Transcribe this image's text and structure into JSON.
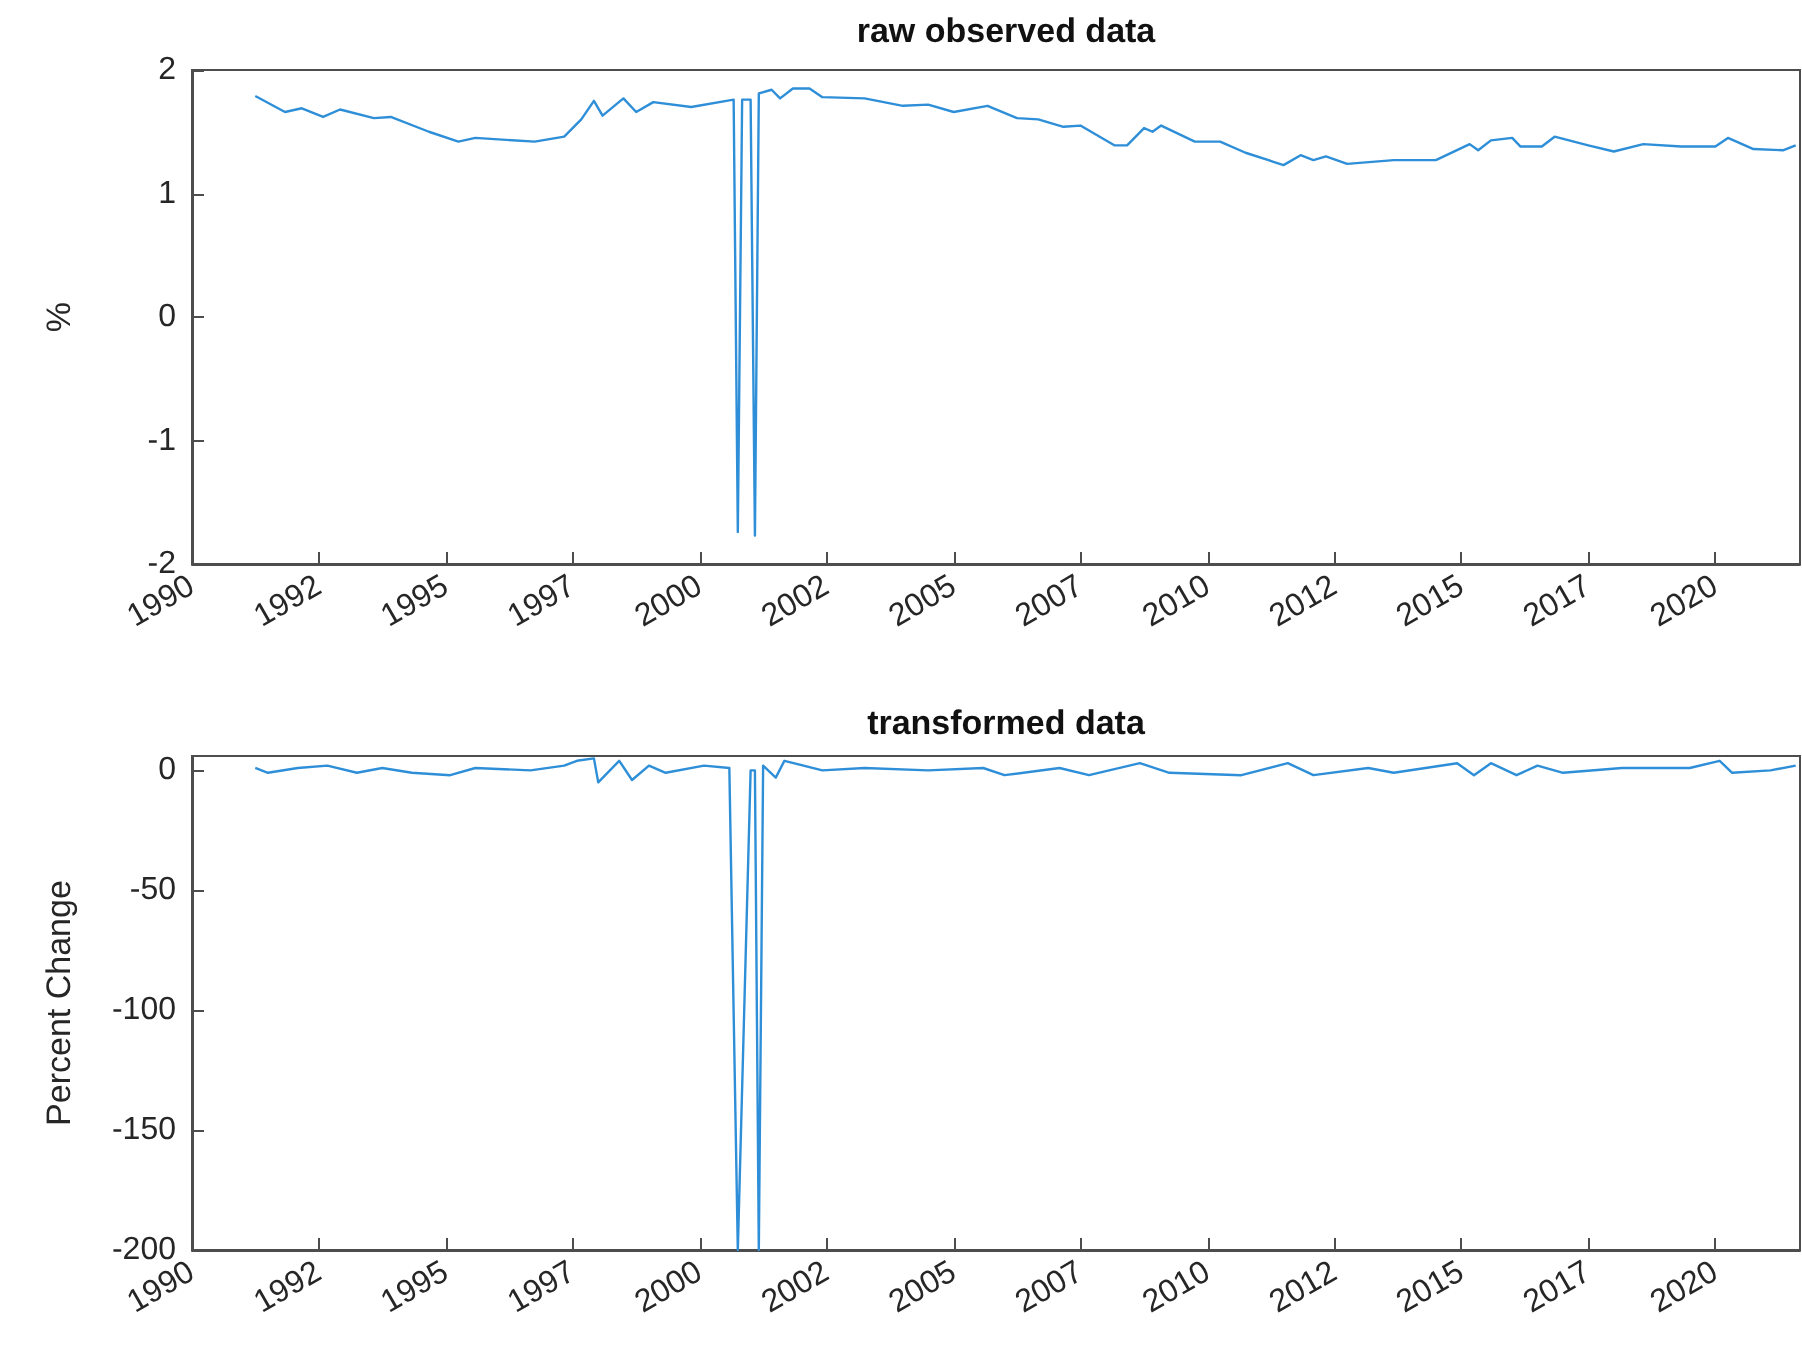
{
  "chart_data": [
    {
      "type": "line",
      "title": "raw observed data",
      "ylabel": "%",
      "xlim": [
        "1990-01",
        "2021-09"
      ],
      "ylim": [
        -2,
        2
      ],
      "yticks": [
        -2,
        -1,
        0,
        1,
        2
      ],
      "grid": false,
      "xticks": [
        {
          "value": "1990-01",
          "label": "1990"
        },
        {
          "value": "1992-07",
          "label": "1992"
        },
        {
          "value": "1995-01",
          "label": "1995"
        },
        {
          "value": "1997-07",
          "label": "1997"
        },
        {
          "value": "2000-01",
          "label": "2000"
        },
        {
          "value": "2002-07",
          "label": "2002"
        },
        {
          "value": "2005-01",
          "label": "2005"
        },
        {
          "value": "2007-07",
          "label": "2007"
        },
        {
          "value": "2010-01",
          "label": "2010"
        },
        {
          "value": "2012-07",
          "label": "2012"
        },
        {
          "value": "2015-01",
          "label": "2015"
        },
        {
          "value": "2017-07",
          "label": "2017"
        },
        {
          "value": "2020-01",
          "label": "2020"
        }
      ],
      "x": [
        "1991-04",
        "1991-11",
        "1992-03",
        "1992-08",
        "1992-12",
        "1993-08",
        "1993-12",
        "1994-09",
        "1995-04",
        "1995-08",
        "1996-10",
        "1997-05",
        "1997-09",
        "1997-12",
        "1998-02",
        "1998-07",
        "1998-10",
        "1999-02",
        "1999-11",
        "2000-09",
        "2000-10",
        "2000-11",
        "2001-01",
        "2001-02",
        "2001-03",
        "2001-06",
        "2001-08",
        "2001-11",
        "2002-03",
        "2002-06",
        "2003-04",
        "2004-01",
        "2004-07",
        "2005-01",
        "2005-09",
        "2006-04",
        "2006-09",
        "2007-03",
        "2007-07",
        "2008-03",
        "2008-06",
        "2008-10",
        "2008-12",
        "2009-02",
        "2009-10",
        "2010-04",
        "2010-10",
        "2011-07",
        "2011-11",
        "2012-02",
        "2012-05",
        "2012-10",
        "2013-09",
        "2014-07",
        "2015-03",
        "2015-05",
        "2015-08",
        "2016-01",
        "2016-03",
        "2016-08",
        "2016-11",
        "2017-07",
        "2018-01",
        "2018-08",
        "2019-05",
        "2020-01",
        "2020-04",
        "2020-10",
        "2021-05",
        "2021-08"
      ],
      "series": [
        {
          "color": "#2e8fd8",
          "values": [
            1.79,
            1.66,
            1.69,
            1.62,
            1.68,
            1.61,
            1.62,
            1.5,
            1.42,
            1.45,
            1.42,
            1.46,
            1.6,
            1.75,
            1.63,
            1.77,
            1.66,
            1.74,
            1.7,
            1.76,
            -1.74,
            1.76,
            1.76,
            -1.77,
            1.81,
            1.84,
            1.77,
            1.85,
            1.85,
            1.78,
            1.77,
            1.71,
            1.72,
            1.66,
            1.71,
            1.61,
            1.6,
            1.54,
            1.55,
            1.39,
            1.39,
            1.53,
            1.5,
            1.55,
            1.42,
            1.42,
            1.33,
            1.23,
            1.31,
            1.27,
            1.3,
            1.24,
            1.27,
            1.27,
            1.4,
            1.35,
            1.43,
            1.45,
            1.38,
            1.38,
            1.46,
            1.39,
            1.34,
            1.4,
            1.38,
            1.38,
            1.45,
            1.36,
            1.35,
            1.39
          ]
        }
      ]
    },
    {
      "type": "line",
      "title": "transformed data",
      "ylabel": "Percent Change",
      "xlim": [
        "1990-01",
        "2021-09"
      ],
      "ylim": [
        -200,
        6
      ],
      "yticks": [
        -200,
        -150,
        -100,
        -50,
        0
      ],
      "grid": false,
      "xticks": [
        {
          "value": "1990-01",
          "label": "1990"
        },
        {
          "value": "1992-07",
          "label": "1992"
        },
        {
          "value": "1995-01",
          "label": "1995"
        },
        {
          "value": "1997-07",
          "label": "1997"
        },
        {
          "value": "2000-01",
          "label": "2000"
        },
        {
          "value": "2002-07",
          "label": "2002"
        },
        {
          "value": "2005-01",
          "label": "2005"
        },
        {
          "value": "2007-07",
          "label": "2007"
        },
        {
          "value": "2010-01",
          "label": "2010"
        },
        {
          "value": "2012-07",
          "label": "2012"
        },
        {
          "value": "2015-01",
          "label": "2015"
        },
        {
          "value": "2017-07",
          "label": "2017"
        },
        {
          "value": "2020-01",
          "label": "2020"
        }
      ],
      "x": [
        "1991-04",
        "1991-07",
        "1992-02",
        "1992-09",
        "1993-04",
        "1993-10",
        "1994-05",
        "1995-02",
        "1995-08",
        "1996-09",
        "1997-05",
        "1997-08",
        "1997-12",
        "1998-01",
        "1998-06",
        "1998-09",
        "1999-01",
        "1999-05",
        "2000-02",
        "2000-08",
        "2000-10",
        "2001-01",
        "2001-02",
        "2001-03",
        "2001-04",
        "2001-07",
        "2001-09",
        "2002-06",
        "2003-04",
        "2004-07",
        "2005-08",
        "2006-01",
        "2007-02",
        "2007-09",
        "2008-09",
        "2009-04",
        "2010-09",
        "2011-08",
        "2012-02",
        "2013-03",
        "2013-09",
        "2014-12",
        "2015-04",
        "2015-08",
        "2016-02",
        "2016-07",
        "2017-01",
        "2018-03",
        "2019-07",
        "2020-02",
        "2020-05",
        "2021-02",
        "2021-08"
      ],
      "series": [
        {
          "color": "#2e8fd8",
          "values": [
            1,
            -1,
            1,
            2,
            -1,
            1,
            -1,
            -2,
            1,
            0,
            2,
            4,
            5,
            -5,
            4,
            -4,
            2,
            -1,
            2,
            1,
            -200,
            0,
            0,
            -200,
            2,
            -3,
            4,
            0,
            1,
            0,
            1,
            -2,
            1,
            -2,
            3,
            -1,
            -2,
            3,
            -2,
            1,
            -1,
            3,
            -2,
            3,
            -2,
            2,
            -1,
            1,
            1,
            4,
            -1,
            0,
            2
          ]
        }
      ]
    }
  ]
}
